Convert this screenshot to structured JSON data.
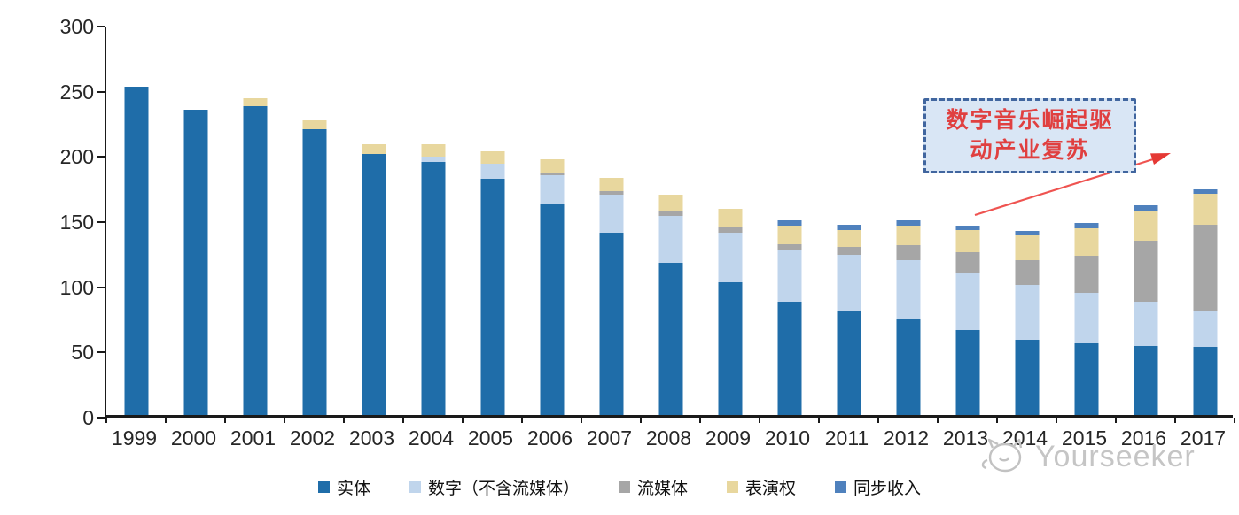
{
  "chart_data": {
    "type": "bar",
    "stacked": true,
    "title": "",
    "categories": [
      "1999",
      "2000",
      "2001",
      "2002",
      "2003",
      "2004",
      "2005",
      "2006",
      "2007",
      "2008",
      "2009",
      "2010",
      "2011",
      "2012",
      "2013",
      "2014",
      "2015",
      "2016",
      "2017"
    ],
    "series": [
      {
        "name": "实体",
        "color": "#1F6DA9",
        "values": [
          252,
          234,
          237,
          219,
          200,
          194,
          181,
          162,
          140,
          117,
          102,
          87,
          80,
          74,
          65,
          58,
          55,
          53,
          52
        ]
      },
      {
        "name": "数字（不含流媒体）",
        "color": "#C0D5EC",
        "values": [
          0,
          0,
          0,
          0,
          0,
          4,
          12,
          22,
          29,
          36,
          38,
          39,
          43,
          45,
          44,
          42,
          39,
          34,
          28
        ]
      },
      {
        "name": "流媒体",
        "color": "#A6A6A6",
        "values": [
          0,
          0,
          0,
          0,
          0,
          0,
          0,
          2,
          3,
          3,
          4,
          5,
          6,
          11,
          16,
          19,
          28,
          47,
          66
        ]
      },
      {
        "name": "表演权",
        "color": "#E8D79E",
        "values": [
          0,
          0,
          6,
          7,
          8,
          10,
          9,
          10,
          10,
          13,
          14,
          14,
          13,
          15,
          17,
          19,
          21,
          23,
          24
        ]
      },
      {
        "name": "同步收入",
        "color": "#4F81BD",
        "values": [
          0,
          0,
          0,
          0,
          0,
          0,
          0,
          0,
          0,
          0,
          0,
          4,
          4,
          4,
          3,
          3,
          4,
          4,
          3
        ]
      }
    ],
    "totals": [
      252,
      234,
      243,
      226,
      208,
      208,
      202,
      196,
      182,
      169,
      158,
      149,
      146,
      149,
      145,
      141,
      147,
      161,
      173
    ],
    "xlabel": "",
    "ylabel": "",
    "ylim": [
      0,
      300
    ],
    "y_ticks": [
      0,
      50,
      100,
      150,
      200,
      250,
      300
    ],
    "grid": false,
    "legend_position": "bottom"
  },
  "annotation": {
    "line1": "数字音乐崛起驱",
    "line2": "动产业复苏",
    "text_color": "#E04040",
    "border_color": "#41669F",
    "fill_color": "#D9E6F5",
    "arrow_color": "#EF5350"
  },
  "watermark": {
    "text": "Yourseeker",
    "icon": "cat-logo-icon",
    "color": "#c5c5c5"
  }
}
